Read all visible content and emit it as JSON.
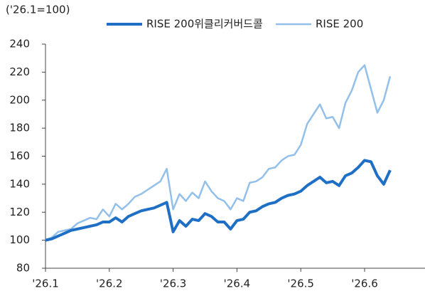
{
  "chart_data": {
    "type": "line",
    "y_label": "('26.1=100)",
    "categories": [
      "'26.1",
      null,
      null,
      null,
      null,
      null,
      null,
      null,
      null,
      null,
      "'26.2",
      null,
      null,
      null,
      null,
      null,
      null,
      null,
      null,
      null,
      "'26.3",
      null,
      null,
      null,
      null,
      null,
      null,
      null,
      null,
      null,
      "'26.4",
      null,
      null,
      null,
      null,
      null,
      null,
      null,
      null,
      null,
      "'26.5",
      null,
      null,
      null,
      null,
      null,
      null,
      null,
      null,
      null,
      "'26.6",
      null,
      null,
      null,
      null
    ],
    "series": [
      {
        "name": "RISE 200위클리커버드콜",
        "color": "#1f6fc5",
        "width": 4,
        "values": [
          100,
          101,
          103,
          105,
          107,
          108,
          109,
          110,
          111,
          113,
          113,
          116,
          113,
          117,
          119,
          121,
          122,
          123,
          125,
          127,
          106,
          114,
          110,
          115,
          114,
          119,
          117,
          113,
          113,
          108,
          114,
          115,
          120,
          121,
          124,
          126,
          127,
          130,
          132,
          133,
          135,
          139,
          142,
          145,
          141,
          142,
          139,
          146,
          148,
          152,
          157,
          156,
          146,
          140,
          150
        ]
      },
      {
        "name": "RISE 200",
        "color": "#93c0ea",
        "width": 2.5,
        "values": [
          100,
          102,
          106,
          107,
          108,
          112,
          114,
          116,
          115,
          122,
          117,
          126,
          122,
          126,
          131,
          133,
          136,
          139,
          142,
          151,
          122,
          133,
          128,
          134,
          130,
          142,
          135,
          130,
          128,
          122,
          130,
          128,
          141,
          142,
          145,
          151,
          152,
          157,
          160,
          161,
          168,
          183,
          190,
          197,
          187,
          188,
          180,
          198,
          207,
          220,
          225,
          208,
          191,
          200,
          217
        ]
      }
    ],
    "ylim": [
      80,
      240
    ],
    "yticks": [
      80,
      100,
      120,
      140,
      160,
      180,
      200,
      220,
      240
    ],
    "grid": false,
    "legend": "top"
  }
}
